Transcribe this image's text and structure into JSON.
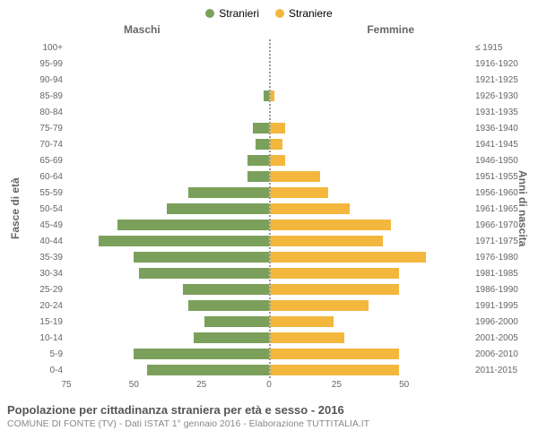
{
  "chart": {
    "type": "population-pyramid",
    "legend": [
      {
        "label": "Stranieri",
        "color": "#7ba05b"
      },
      {
        "label": "Straniere",
        "color": "#f3b73e"
      }
    ],
    "header_male": "Maschi",
    "header_female": "Femmine",
    "ylabel_left": "Fasce di età",
    "ylabel_right": "Anni di nascita",
    "xmax": 75,
    "xticks_left": [
      75,
      50,
      25,
      0
    ],
    "xticks_right": [
      0,
      25,
      50
    ],
    "age_labels": [
      "100+",
      "95-99",
      "90-94",
      "85-89",
      "80-84",
      "75-79",
      "70-74",
      "65-69",
      "60-64",
      "55-59",
      "50-54",
      "45-49",
      "40-44",
      "35-39",
      "30-34",
      "25-29",
      "20-24",
      "15-19",
      "10-14",
      "5-9",
      "0-4"
    ],
    "birth_labels": [
      "≤ 1915",
      "1916-1920",
      "1921-1925",
      "1926-1930",
      "1931-1935",
      "1936-1940",
      "1941-1945",
      "1946-1950",
      "1951-1955",
      "1956-1960",
      "1961-1965",
      "1966-1970",
      "1971-1975",
      "1976-1980",
      "1981-1985",
      "1986-1990",
      "1991-1995",
      "1996-2000",
      "2001-2005",
      "2006-2010",
      "2011-2015"
    ],
    "males": [
      0,
      0,
      0,
      2,
      0,
      6,
      5,
      8,
      8,
      30,
      38,
      56,
      63,
      50,
      48,
      32,
      30,
      24,
      28,
      50,
      45
    ],
    "females": [
      0,
      0,
      0,
      2,
      0,
      6,
      5,
      6,
      19,
      22,
      30,
      45,
      42,
      58,
      48,
      48,
      37,
      24,
      28,
      48,
      48
    ],
    "male_color": "#7ba05b",
    "female_color": "#f3b73e",
    "background_color": "#ffffff",
    "centerline_color": "#999999",
    "label_color": "#666666",
    "tick_fontsize": 10,
    "label_fontsize": 12
  },
  "footer": {
    "title": "Popolazione per cittadinanza straniera per età e sesso - 2016",
    "subtitle": "COMUNE DI FONTE (TV) - Dati ISTAT 1° gennaio 2016 - Elaborazione TUTTITALIA.IT"
  }
}
